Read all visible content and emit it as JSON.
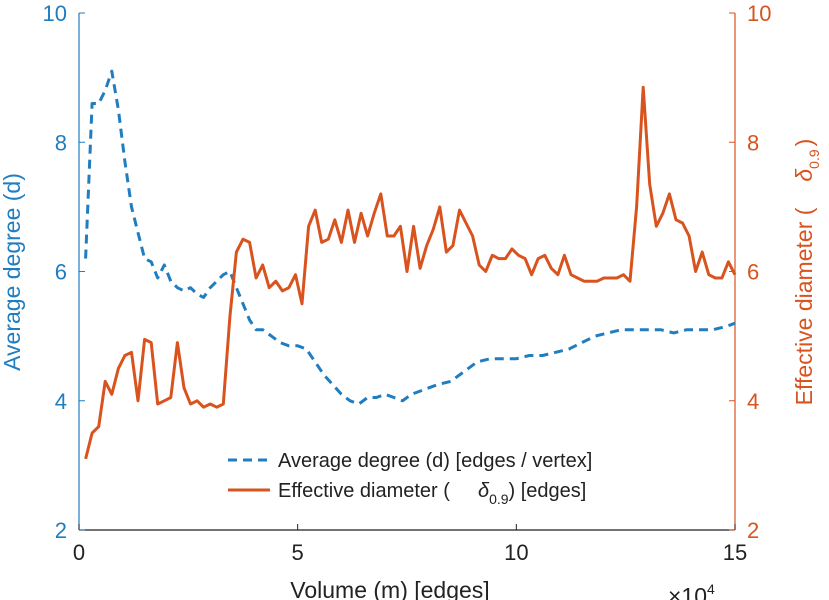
{
  "chart_data": {
    "type": "line",
    "xlabel": "Volume (m) [edges]",
    "x_exponent_label": "×10",
    "x_exponent_power": "4",
    "ylabel_left": "Average degree (d)",
    "ylabel_right_main": "Effective diameter (",
    "ylabel_right_symbol": "δ",
    "ylabel_right_sub": "0.9",
    "ylabel_right_close": ")",
    "xlim": [
      0,
      15
    ],
    "ylim_left": [
      2,
      10
    ],
    "ylim_right": [
      2,
      10
    ],
    "xticks": [
      0,
      5,
      10,
      15
    ],
    "yticks_left": [
      2,
      4,
      6,
      8,
      10
    ],
    "yticks_right": [
      2,
      4,
      6,
      8,
      10
    ],
    "colors": {
      "degree": "#1f7dc0",
      "diameter": "#d9531e",
      "axis": "#222222"
    },
    "legend": {
      "placement": "bottom-center",
      "entries": [
        {
          "text": "Average degree (d) [edges / vertex]"
        },
        {
          "text_before": "Effective diameter (",
          "symbol": "δ",
          "sub": "0.9",
          "text_after": ") [edges]"
        }
      ]
    },
    "series": [
      {
        "style": "dashed",
        "axis": "left",
        "x": [
          0.15,
          0.3,
          0.45,
          0.6,
          0.75,
          0.9,
          1.05,
          1.2,
          1.35,
          1.5,
          1.65,
          1.8,
          1.95,
          2.1,
          2.25,
          2.4,
          2.55,
          2.7,
          2.85,
          3.0,
          3.15,
          3.3,
          3.45,
          3.6,
          3.75,
          3.9,
          4.05,
          4.2,
          4.4,
          4.6,
          4.8,
          5.0,
          5.2,
          5.4,
          5.6,
          5.8,
          6.0,
          6.2,
          6.4,
          6.6,
          6.8,
          7.0,
          7.2,
          7.4,
          7.6,
          7.8,
          8.0,
          8.2,
          8.5,
          8.8,
          9.1,
          9.4,
          9.7,
          10.0,
          10.3,
          10.6,
          10.9,
          11.2,
          11.5,
          11.8,
          12.1,
          12.4,
          12.7,
          13.0,
          13.3,
          13.6,
          13.9,
          14.2,
          14.5,
          14.8,
          15.0
        ],
        "values": [
          6.2,
          8.6,
          8.6,
          8.8,
          9.1,
          8.5,
          7.7,
          7.0,
          6.6,
          6.2,
          6.15,
          5.9,
          6.1,
          5.85,
          5.75,
          5.7,
          5.75,
          5.65,
          5.6,
          5.75,
          5.85,
          5.95,
          6.0,
          5.75,
          5.5,
          5.25,
          5.1,
          5.1,
          5.0,
          4.9,
          4.85,
          4.85,
          4.8,
          4.6,
          4.4,
          4.25,
          4.1,
          4.0,
          3.95,
          4.05,
          4.05,
          4.1,
          4.05,
          4.0,
          4.1,
          4.15,
          4.2,
          4.25,
          4.3,
          4.45,
          4.6,
          4.65,
          4.65,
          4.65,
          4.7,
          4.7,
          4.75,
          4.8,
          4.9,
          5.0,
          5.05,
          5.1,
          5.1,
          5.1,
          5.1,
          5.05,
          5.1,
          5.1,
          5.1,
          5.15,
          5.2
        ]
      },
      {
        "style": "solid",
        "axis": "right",
        "x": [
          0.15,
          0.3,
          0.45,
          0.6,
          0.75,
          0.9,
          1.05,
          1.2,
          1.35,
          1.5,
          1.65,
          1.8,
          1.95,
          2.1,
          2.25,
          2.4,
          2.55,
          2.7,
          2.85,
          3.0,
          3.15,
          3.3,
          3.45,
          3.6,
          3.75,
          3.9,
          4.05,
          4.2,
          4.35,
          4.5,
          4.65,
          4.8,
          4.95,
          5.1,
          5.25,
          5.4,
          5.55,
          5.7,
          5.85,
          6.0,
          6.15,
          6.3,
          6.45,
          6.6,
          6.75,
          6.9,
          7.05,
          7.2,
          7.35,
          7.5,
          7.65,
          7.8,
          7.95,
          8.1,
          8.25,
          8.4,
          8.55,
          8.7,
          8.85,
          9.0,
          9.15,
          9.3,
          9.45,
          9.6,
          9.75,
          9.9,
          10.05,
          10.2,
          10.35,
          10.5,
          10.65,
          10.8,
          10.95,
          11.1,
          11.25,
          11.4,
          11.55,
          11.7,
          11.85,
          12.0,
          12.15,
          12.3,
          12.45,
          12.6,
          12.75,
          12.9,
          13.05,
          13.2,
          13.35,
          13.5,
          13.65,
          13.8,
          13.95,
          14.1,
          14.25,
          14.4,
          14.55,
          14.7,
          14.85,
          15.0
        ],
        "values": [
          3.1,
          3.5,
          3.6,
          4.3,
          4.1,
          4.5,
          4.7,
          4.75,
          4.0,
          4.95,
          4.9,
          3.95,
          4.0,
          4.05,
          4.9,
          4.2,
          3.95,
          4.0,
          3.9,
          3.95,
          3.9,
          3.95,
          5.3,
          6.3,
          6.5,
          6.45,
          5.9,
          6.1,
          5.75,
          5.85,
          5.7,
          5.75,
          5.95,
          5.5,
          6.7,
          6.95,
          6.45,
          6.5,
          6.8,
          6.45,
          6.95,
          6.45,
          6.9,
          6.55,
          6.9,
          7.2,
          6.55,
          6.55,
          6.7,
          6.0,
          6.7,
          6.05,
          6.4,
          6.65,
          7.0,
          6.3,
          6.4,
          6.95,
          6.75,
          6.55,
          6.1,
          6.0,
          6.25,
          6.2,
          6.2,
          6.35,
          6.25,
          6.2,
          5.95,
          6.2,
          6.25,
          6.05,
          5.95,
          6.25,
          5.95,
          5.9,
          5.85,
          5.85,
          5.85,
          5.9,
          5.9,
          5.9,
          5.95,
          5.85,
          7.0,
          8.85,
          7.35,
          6.7,
          6.9,
          7.2,
          6.8,
          6.75,
          6.55,
          6.0,
          6.3,
          5.95,
          5.9,
          5.9,
          6.15,
          5.95
        ]
      }
    ]
  }
}
